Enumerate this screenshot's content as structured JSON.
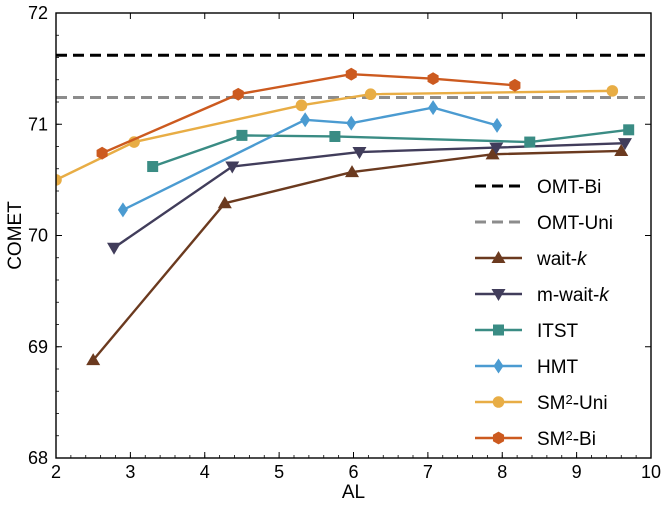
{
  "chart_data": {
    "type": "line",
    "title": "",
    "xlabel": "AL",
    "ylabel": "COMET",
    "xlim": [
      2,
      10
    ],
    "ylim": [
      68,
      72
    ],
    "xticks": [
      "2",
      "3",
      "4",
      "5",
      "6",
      "7",
      "8",
      "9",
      "10"
    ],
    "yticks": [
      "68",
      "69",
      "70",
      "71",
      "72"
    ],
    "grid": false,
    "legend_position": "center-right",
    "reference_lines": [
      {
        "name": "OMT-Bi",
        "value": 71.62,
        "color": "#000000",
        "style": "dashed"
      },
      {
        "name": "OMT-Uni",
        "value": 71.24,
        "color": "#8c8c8c",
        "style": "dashed"
      }
    ],
    "series": [
      {
        "name": "wait-",
        "name_italic": "k",
        "marker": "triangle-up",
        "color": "#6b3a1f",
        "x": [
          2.5,
          4.27,
          5.98,
          7.87,
          9.6
        ],
        "y": [
          68.88,
          70.29,
          70.57,
          70.73,
          70.76
        ]
      },
      {
        "name": "m-wait-",
        "name_italic": "k",
        "marker": "triangle-down",
        "color": "#413d5b",
        "x": [
          2.78,
          4.37,
          6.08,
          7.92,
          9.65
        ],
        "y": [
          69.89,
          70.62,
          70.75,
          70.79,
          70.83
        ]
      },
      {
        "name": "ITST",
        "marker": "square",
        "color": "#3a8c84",
        "x": [
          3.3,
          4.5,
          5.75,
          8.37,
          9.7
        ],
        "y": [
          70.62,
          70.9,
          70.89,
          70.84,
          70.95
        ]
      },
      {
        "name": "HMT",
        "marker": "diamond",
        "color": "#4b9bd1",
        "x": [
          2.9,
          5.35,
          5.97,
          7.07,
          7.93
        ],
        "y": [
          70.23,
          71.04,
          71.01,
          71.15,
          70.99
        ]
      },
      {
        "name": "SM",
        "name_sup": "2",
        "name_suffix": "-Uni",
        "marker": "circle",
        "color": "#e8ad45",
        "x": [
          2.0,
          3.05,
          5.3,
          6.23,
          9.48
        ],
        "y": [
          70.5,
          70.84,
          71.17,
          71.27,
          71.3
        ]
      },
      {
        "name": "SM",
        "name_sup": "2",
        "name_suffix": "-Bi",
        "marker": "hexagon",
        "color": "#cc5a1f",
        "x": [
          2.62,
          4.45,
          5.97,
          7.07,
          8.17
        ],
        "y": [
          70.74,
          71.27,
          71.45,
          71.41,
          71.35
        ]
      }
    ]
  }
}
